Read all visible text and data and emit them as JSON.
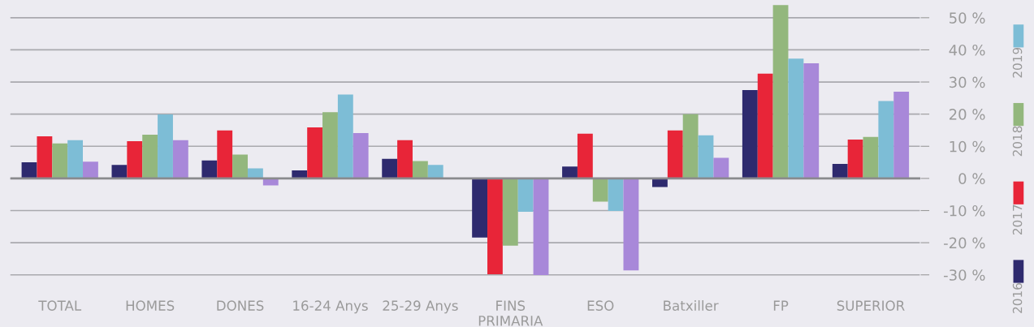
{
  "chart_data": {
    "type": "bar",
    "categories": [
      "TOTAL",
      "HOMES",
      "DONES",
      "16-24 Anys",
      "25-29 Anys",
      "FINS PRIMARIA",
      "ESO",
      "Batxiller",
      "FP",
      "SUPERIOR"
    ],
    "series": [
      {
        "name": "2016",
        "color": "#2e2a6e",
        "values": [
          5.0,
          4.2,
          5.6,
          2.5,
          6.1,
          -18.4,
          3.7,
          -2.7,
          27.5,
          4.5
        ]
      },
      {
        "name": "2017",
        "color": "#e82538",
        "values": [
          13.1,
          11.6,
          14.9,
          15.9,
          11.9,
          -29.8,
          13.9,
          14.9,
          32.6,
          12.1
        ]
      },
      {
        "name": "2018",
        "color": "#93b77d",
        "values": [
          10.9,
          13.6,
          7.4,
          20.6,
          5.4,
          -20.9,
          -7.2,
          20.0,
          53.9,
          12.9
        ]
      },
      {
        "name": "2019",
        "color": "#7dbdd6",
        "values": [
          11.9,
          19.9,
          3.1,
          26.1,
          4.2,
          -10.4,
          -10.1,
          13.4,
          37.3,
          24.1
        ]
      },
      {
        "color": "#a888d9",
        "values": [
          5.2,
          11.9,
          -2.2,
          14.1,
          null,
          -30.1,
          -28.6,
          6.4,
          35.8,
          27.0
        ]
      }
    ],
    "ylim": [
      -33,
      55
    ],
    "yticks": [
      {
        "value": -30,
        "label": "-30 %"
      },
      {
        "value": -20,
        "label": "-20 %"
      },
      {
        "value": -10,
        "label": "-10 %"
      },
      {
        "value": 0,
        "label": "0 %"
      },
      {
        "value": 10,
        "label": "10 %"
      },
      {
        "value": 20,
        "label": "20 %"
      },
      {
        "value": 30,
        "label": "30 %"
      },
      {
        "value": 40,
        "label": "40 %"
      },
      {
        "value": 50,
        "label": "50 %"
      }
    ],
    "grid": "y",
    "legend": "right"
  }
}
